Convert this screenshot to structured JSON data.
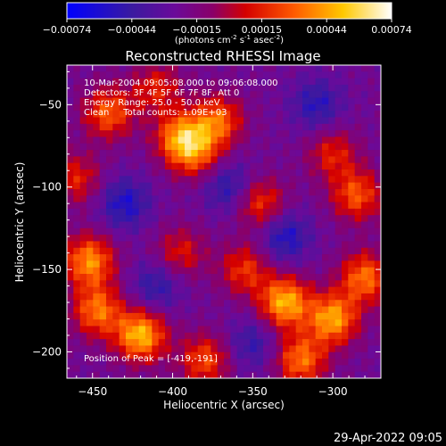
{
  "chart_data": {
    "type": "heatmap",
    "title": "Reconstructed RHESSI Image",
    "xlabel": "Heliocentric X (arcsec)",
    "ylabel": "Heliocentric Y (arcsec)",
    "xlim": [
      -466,
      -270
    ],
    "ylim": [
      -216,
      -26
    ],
    "xticks": [
      -450,
      -400,
      -350,
      -300
    ],
    "yticks": [
      -50,
      -100,
      -150,
      -200
    ],
    "colorbar": {
      "range": [
        -0.00074,
        0.00074
      ],
      "ticks": [
        "-0.00074",
        "-0.00044",
        "-0.00015",
        "0.00015",
        "0.00044",
        "0.00074"
      ],
      "unit_prefix": "(photons cm",
      "unit_sup1": "-2",
      "unit_mid": " s",
      "unit_sup2": "-1",
      "unit_suffix": " asec",
      "unit_sup3": "-2",
      "unit_close": ")"
    },
    "info": {
      "time_range": "10-Mar-2004 09:05:08.000 to 09:06:08.000",
      "detectors": "Detectors: 3F 4F 5F 6F 7F 8F, Att 0",
      "energy": "Energy Range: 25.0 - 50.0 keV",
      "algorithm": "Clean     Total counts: 1.09E+03",
      "peak": "Position of Peak = [-419,-191]"
    },
    "peak": [
      -419,
      -191
    ],
    "grid_cells": [
      48,
      48
    ],
    "blobs": [
      {
        "x": -452,
        "y": -145,
        "amp": 0.00062
      },
      {
        "x": -447,
        "y": -175,
        "amp": 0.00055
      },
      {
        "x": -420,
        "y": -190,
        "amp": 0.00072
      },
      {
        "x": -440,
        "y": -55,
        "amp": 0.0005
      },
      {
        "x": -395,
        "y": -70,
        "amp": 0.0006
      },
      {
        "x": -372,
        "y": -60,
        "amp": 0.00052
      },
      {
        "x": -385,
        "y": -80,
        "amp": 0.0004
      },
      {
        "x": -300,
        "y": -80,
        "amp": 0.00035
      },
      {
        "x": -345,
        "y": -110,
        "amp": 0.00042
      },
      {
        "x": -285,
        "y": -105,
        "amp": 0.00048
      },
      {
        "x": -395,
        "y": -140,
        "amp": 0.00033
      },
      {
        "x": -330,
        "y": -170,
        "amp": 0.0007
      },
      {
        "x": -300,
        "y": -180,
        "amp": 0.00066
      },
      {
        "x": -280,
        "y": -155,
        "amp": 0.00055
      },
      {
        "x": -380,
        "y": -205,
        "amp": 0.00045
      },
      {
        "x": -355,
        "y": -150,
        "amp": 0.0004
      },
      {
        "x": -410,
        "y": -40,
        "amp": 0.00035
      },
      {
        "x": -460,
        "y": -95,
        "amp": 0.00035
      },
      {
        "x": -320,
        "y": -205,
        "amp": 0.00055
      },
      {
        "x": -430,
        "y": -110,
        "amp": -0.00035
      },
      {
        "x": -365,
        "y": -100,
        "amp": -0.0003
      },
      {
        "x": -330,
        "y": -130,
        "amp": -0.00035
      },
      {
        "x": -310,
        "y": -50,
        "amp": -0.0003
      },
      {
        "x": -410,
        "y": -160,
        "amp": -0.00028
      },
      {
        "x": -350,
        "y": -195,
        "amp": -0.00025
      }
    ],
    "background": -0.00022
  },
  "footer": {
    "timestamp": "29-Apr-2022 09:05"
  }
}
